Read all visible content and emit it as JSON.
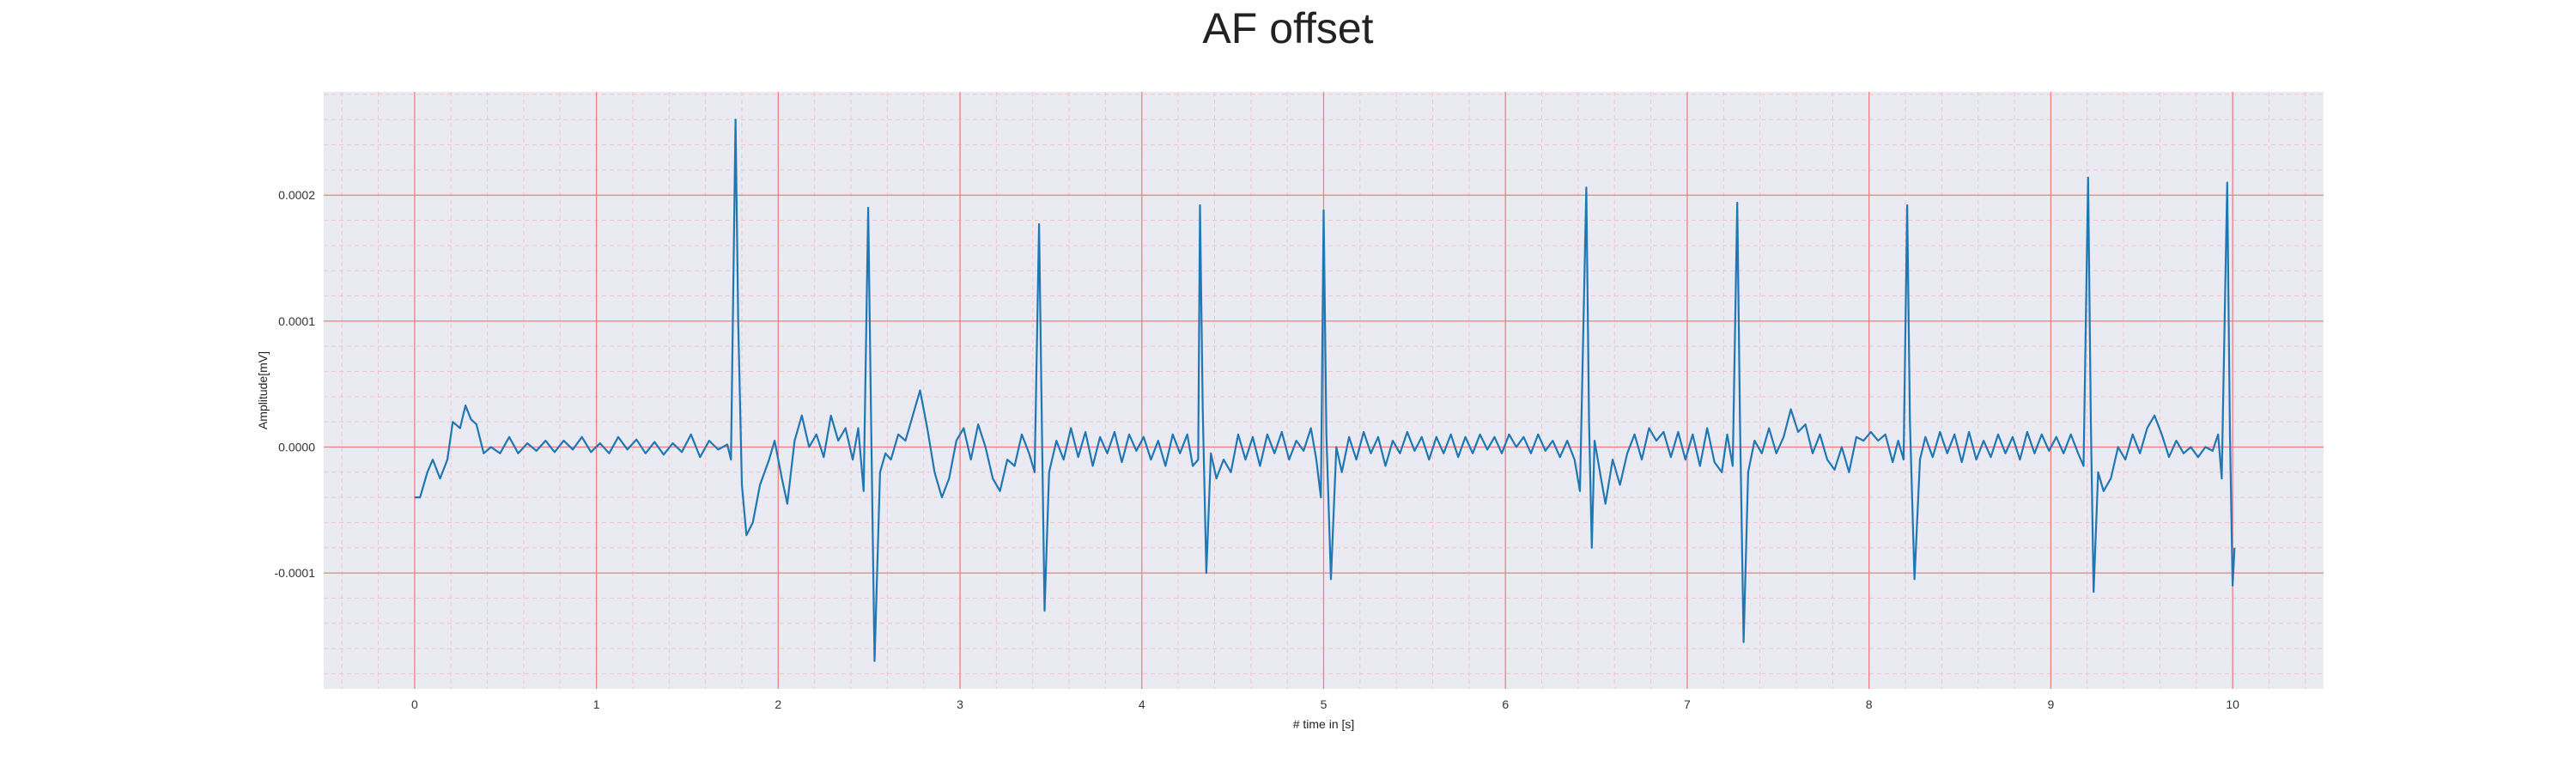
{
  "chart_data": {
    "type": "line",
    "title": "AF offset",
    "xlabel": "# time in [s]",
    "ylabel": "Amplitude[mV]",
    "xlim": [
      -0.5,
      10.5
    ],
    "ylim": [
      -0.000192,
      0.000282
    ],
    "x_ticks": [
      0,
      1,
      2,
      3,
      4,
      5,
      6,
      7,
      8,
      9,
      10
    ],
    "x_tick_labels": [
      "0",
      "1",
      "2",
      "3",
      "4",
      "5",
      "6",
      "7",
      "8",
      "9",
      "10"
    ],
    "y_ticks": [
      -0.0001,
      0.0,
      0.0001,
      0.0002
    ],
    "y_tick_labels": [
      "-0.0001",
      "0.0000",
      "0.0001",
      "0.0002"
    ],
    "grid": true,
    "minor_grid": true,
    "colors": {
      "line": "#1f77b4",
      "plot_background": "#eaeaf2",
      "major_grid": "#f08080",
      "minor_grid": "#f3c4cc"
    },
    "series": [
      {
        "color": "#1f77b4",
        "points": [
          [
            0.0,
            -4e-05
          ],
          [
            0.03,
            -4e-05
          ],
          [
            0.07,
            -2e-05
          ],
          [
            0.1,
            -1e-05
          ],
          [
            0.14,
            -2.5e-05
          ],
          [
            0.18,
            -1e-05
          ],
          [
            0.21,
            2e-05
          ],
          [
            0.25,
            1.5e-05
          ],
          [
            0.28,
            3.3e-05
          ],
          [
            0.31,
            2.2e-05
          ],
          [
            0.34,
            1.8e-05
          ],
          [
            0.38,
            -5e-06
          ],
          [
            0.42,
            0.0
          ],
          [
            0.47,
            -5e-06
          ],
          [
            0.52,
            8e-06
          ],
          [
            0.57,
            -5e-06
          ],
          [
            0.62,
            3e-06
          ],
          [
            0.67,
            -3e-06
          ],
          [
            0.72,
            5e-06
          ],
          [
            0.77,
            -4e-06
          ],
          [
            0.82,
            5e-06
          ],
          [
            0.87,
            -2e-06
          ],
          [
            0.92,
            8e-06
          ],
          [
            0.97,
            -4e-06
          ],
          [
            1.02,
            3e-06
          ],
          [
            1.07,
            -5e-06
          ],
          [
            1.12,
            8e-06
          ],
          [
            1.17,
            -2e-06
          ],
          [
            1.22,
            6e-06
          ],
          [
            1.27,
            -5e-06
          ],
          [
            1.32,
            4e-06
          ],
          [
            1.37,
            -6e-06
          ],
          [
            1.42,
            3e-06
          ],
          [
            1.47,
            -4e-06
          ],
          [
            1.52,
            1e-05
          ],
          [
            1.57,
            -8e-06
          ],
          [
            1.62,
            5e-06
          ],
          [
            1.67,
            -2e-06
          ],
          [
            1.72,
            2e-06
          ],
          [
            1.74,
            -1e-05
          ],
          [
            1.765,
            0.00026
          ],
          [
            1.78,
            0.0001
          ],
          [
            1.8,
            -3e-05
          ],
          [
            1.825,
            -7e-05
          ],
          [
            1.86,
            -6e-05
          ],
          [
            1.9,
            -3e-05
          ],
          [
            1.95,
            -1e-05
          ],
          [
            1.98,
            5e-06
          ],
          [
            2.02,
            -2.5e-05
          ],
          [
            2.05,
            -4.5e-05
          ],
          [
            2.09,
            5e-06
          ],
          [
            2.13,
            2.5e-05
          ],
          [
            2.17,
            0.0
          ],
          [
            2.21,
            1e-05
          ],
          [
            2.25,
            -8e-06
          ],
          [
            2.29,
            2.5e-05
          ],
          [
            2.33,
            5e-06
          ],
          [
            2.37,
            1.5e-05
          ],
          [
            2.41,
            -1e-05
          ],
          [
            2.44,
            1.5e-05
          ],
          [
            2.47,
            -3.5e-05
          ],
          [
            2.495,
            0.00019
          ],
          [
            2.51,
            3e-05
          ],
          [
            2.53,
            -0.00017
          ],
          [
            2.56,
            -2e-05
          ],
          [
            2.59,
            -5e-06
          ],
          [
            2.62,
            -1e-05
          ],
          [
            2.66,
            1e-05
          ],
          [
            2.7,
            5e-06
          ],
          [
            2.74,
            2.5e-05
          ],
          [
            2.78,
            4.5e-05
          ],
          [
            2.82,
            1.5e-05
          ],
          [
            2.86,
            -2e-05
          ],
          [
            2.9,
            -4e-05
          ],
          [
            2.94,
            -2.5e-05
          ],
          [
            2.98,
            5e-06
          ],
          [
            3.02,
            1.5e-05
          ],
          [
            3.06,
            -1e-05
          ],
          [
            3.1,
            1.8e-05
          ],
          [
            3.14,
            0.0
          ],
          [
            3.18,
            -2.5e-05
          ],
          [
            3.22,
            -3.5e-05
          ],
          [
            3.26,
            -1e-05
          ],
          [
            3.3,
            -1.5e-05
          ],
          [
            3.34,
            1e-05
          ],
          [
            3.38,
            -5e-06
          ],
          [
            3.41,
            -2e-05
          ],
          [
            3.435,
            0.000177
          ],
          [
            3.45,
            2e-05
          ],
          [
            3.465,
            -0.00013
          ],
          [
            3.49,
            -2e-05
          ],
          [
            3.53,
            5e-06
          ],
          [
            3.57,
            -1e-05
          ],
          [
            3.61,
            1.5e-05
          ],
          [
            3.65,
            -8e-06
          ],
          [
            3.69,
            1.2e-05
          ],
          [
            3.73,
            -1.5e-05
          ],
          [
            3.77,
            8e-06
          ],
          [
            3.81,
            -5e-06
          ],
          [
            3.85,
            1.2e-05
          ],
          [
            3.89,
            -1.2e-05
          ],
          [
            3.93,
            1e-05
          ],
          [
            3.97,
            -3e-06
          ],
          [
            4.01,
            8e-06
          ],
          [
            4.05,
            -1e-05
          ],
          [
            4.09,
            5e-06
          ],
          [
            4.13,
            -1.5e-05
          ],
          [
            4.17,
            1e-05
          ],
          [
            4.21,
            -5e-06
          ],
          [
            4.25,
            1e-05
          ],
          [
            4.28,
            -1.5e-05
          ],
          [
            4.31,
            -1e-05
          ],
          [
            4.32,
            0.000192
          ],
          [
            4.335,
            3e-05
          ],
          [
            4.355,
            -0.0001
          ],
          [
            4.38,
            -5e-06
          ],
          [
            4.41,
            -2.5e-05
          ],
          [
            4.45,
            -1e-05
          ],
          [
            4.49,
            -2e-05
          ],
          [
            4.53,
            1e-05
          ],
          [
            4.57,
            -1e-05
          ],
          [
            4.61,
            8e-06
          ],
          [
            4.65,
            -1.5e-05
          ],
          [
            4.69,
            1e-05
          ],
          [
            4.73,
            -5e-06
          ],
          [
            4.77,
            1.2e-05
          ],
          [
            4.81,
            -1e-05
          ],
          [
            4.85,
            5e-06
          ],
          [
            4.89,
            -3e-06
          ],
          [
            4.93,
            1.5e-05
          ],
          [
            4.96,
            -1e-05
          ],
          [
            4.985,
            -4e-05
          ],
          [
            5.0,
            0.000188
          ],
          [
            5.015,
            1e-05
          ],
          [
            5.04,
            -0.000105
          ],
          [
            5.07,
            0.0
          ],
          [
            5.1,
            -2e-05
          ],
          [
            5.14,
            8e-06
          ],
          [
            5.18,
            -1e-05
          ],
          [
            5.22,
            1.2e-05
          ],
          [
            5.26,
            -5e-06
          ],
          [
            5.3,
            8e-06
          ],
          [
            5.34,
            -1.5e-05
          ],
          [
            5.38,
            5e-06
          ],
          [
            5.42,
            -5e-06
          ],
          [
            5.46,
            1.2e-05
          ],
          [
            5.5,
            -3e-06
          ],
          [
            5.54,
            8e-06
          ],
          [
            5.58,
            -1e-05
          ],
          [
            5.62,
            8e-06
          ],
          [
            5.66,
            -5e-06
          ],
          [
            5.7,
            1e-05
          ],
          [
            5.74,
            -8e-06
          ],
          [
            5.78,
            8e-06
          ],
          [
            5.82,
            -5e-06
          ],
          [
            5.86,
            1e-05
          ],
          [
            5.9,
            -2e-06
          ],
          [
            5.94,
            8e-06
          ],
          [
            5.98,
            -5e-06
          ],
          [
            6.02,
            1e-05
          ],
          [
            6.06,
            0.0
          ],
          [
            6.1,
            8e-06
          ],
          [
            6.14,
            -5e-06
          ],
          [
            6.18,
            1e-05
          ],
          [
            6.22,
            -3e-06
          ],
          [
            6.26,
            5e-06
          ],
          [
            6.3,
            -8e-06
          ],
          [
            6.34,
            5e-06
          ],
          [
            6.38,
            -1e-05
          ],
          [
            6.41,
            -3.5e-05
          ],
          [
            6.445,
            0.000206
          ],
          [
            6.46,
            2e-05
          ],
          [
            6.475,
            -8e-05
          ],
          [
            6.49,
            5e-06
          ],
          [
            6.52,
            -2e-05
          ],
          [
            6.55,
            -4.5e-05
          ],
          [
            6.59,
            -1e-05
          ],
          [
            6.63,
            -3e-05
          ],
          [
            6.67,
            -5e-06
          ],
          [
            6.71,
            1e-05
          ],
          [
            6.75,
            -1e-05
          ],
          [
            6.79,
            1.5e-05
          ],
          [
            6.83,
            5e-06
          ],
          [
            6.87,
            1.2e-05
          ],
          [
            6.91,
            -8e-06
          ],
          [
            6.95,
            1.2e-05
          ],
          [
            6.99,
            -1e-05
          ],
          [
            7.03,
            1e-05
          ],
          [
            7.07,
            -1.5e-05
          ],
          [
            7.11,
            1.5e-05
          ],
          [
            7.15,
            -1.2e-05
          ],
          [
            7.19,
            -2e-05
          ],
          [
            7.22,
            1e-05
          ],
          [
            7.25,
            -1.5e-05
          ],
          [
            7.275,
            0.000194
          ],
          [
            7.29,
            2e-05
          ],
          [
            7.31,
            -0.000155
          ],
          [
            7.335,
            -2e-05
          ],
          [
            7.37,
            5e-06
          ],
          [
            7.41,
            -5e-06
          ],
          [
            7.45,
            1.5e-05
          ],
          [
            7.49,
            -5e-06
          ],
          [
            7.53,
            8e-06
          ],
          [
            7.57,
            3e-05
          ],
          [
            7.61,
            1.2e-05
          ],
          [
            7.65,
            1.8e-05
          ],
          [
            7.69,
            -5e-06
          ],
          [
            7.73,
            1e-05
          ],
          [
            7.77,
            -1e-05
          ],
          [
            7.81,
            -1.8e-05
          ],
          [
            7.85,
            0.0
          ],
          [
            7.89,
            -2e-05
          ],
          [
            7.93,
            8e-06
          ],
          [
            7.97,
            5e-06
          ],
          [
            8.01,
            1.2e-05
          ],
          [
            8.05,
            5e-06
          ],
          [
            8.09,
            1e-05
          ],
          [
            8.13,
            -1.2e-05
          ],
          [
            8.16,
            5e-06
          ],
          [
            8.19,
            -1e-05
          ],
          [
            8.21,
            0.000192
          ],
          [
            8.225,
            2e-05
          ],
          [
            8.25,
            -0.000105
          ],
          [
            8.28,
            -1e-05
          ],
          [
            8.31,
            8e-06
          ],
          [
            8.35,
            -8e-06
          ],
          [
            8.39,
            1.2e-05
          ],
          [
            8.43,
            -5e-06
          ],
          [
            8.47,
            1e-05
          ],
          [
            8.51,
            -1.2e-05
          ],
          [
            8.55,
            1.2e-05
          ],
          [
            8.59,
            -1e-05
          ],
          [
            8.63,
            5e-06
          ],
          [
            8.67,
            -8e-06
          ],
          [
            8.71,
            1e-05
          ],
          [
            8.75,
            -5e-06
          ],
          [
            8.79,
            8e-06
          ],
          [
            8.83,
            -1e-05
          ],
          [
            8.87,
            1.2e-05
          ],
          [
            8.91,
            -5e-06
          ],
          [
            8.95,
            1e-05
          ],
          [
            8.99,
            -3e-06
          ],
          [
            9.03,
            8e-06
          ],
          [
            9.07,
            -5e-06
          ],
          [
            9.11,
            1e-05
          ],
          [
            9.15,
            -5e-06
          ],
          [
            9.18,
            -1.5e-05
          ],
          [
            9.205,
            0.000214
          ],
          [
            9.22,
            2e-05
          ],
          [
            9.235,
            -0.000115
          ],
          [
            9.26,
            -2e-05
          ],
          [
            9.29,
            -3.5e-05
          ],
          [
            9.33,
            -2.5e-05
          ],
          [
            9.37,
            0.0
          ],
          [
            9.41,
            -1e-05
          ],
          [
            9.45,
            1e-05
          ],
          [
            9.49,
            -5e-06
          ],
          [
            9.53,
            1.5e-05
          ],
          [
            9.57,
            2.5e-05
          ],
          [
            9.61,
            1e-05
          ],
          [
            9.65,
            -8e-06
          ],
          [
            9.69,
            5e-06
          ],
          [
            9.73,
            -5e-06
          ],
          [
            9.77,
            0.0
          ],
          [
            9.81,
            -8e-06
          ],
          [
            9.85,
            0.0
          ],
          [
            9.89,
            -3e-06
          ],
          [
            9.92,
            1e-05
          ],
          [
            9.94,
            -2.5e-05
          ],
          [
            9.97,
            0.00021
          ],
          [
            9.985,
            1e-05
          ],
          [
            10.0,
            -0.00011
          ],
          [
            10.01,
            -8e-05
          ]
        ]
      }
    ]
  }
}
